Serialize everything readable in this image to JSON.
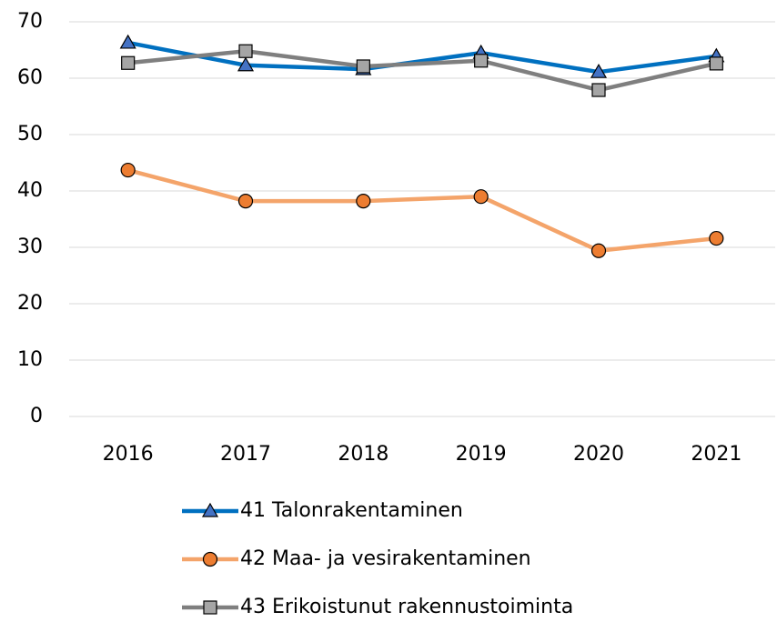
{
  "chart_data": {
    "type": "line",
    "categories": [
      "2016",
      "2017",
      "2018",
      "2019",
      "2020",
      "2021"
    ],
    "series": [
      {
        "name": "41 Talonrakentaminen",
        "color": "#0070c0",
        "marker": "triangle",
        "marker_color": "#4472c4",
        "values": [
          66.3,
          62.3,
          61.6,
          64.5,
          61.1,
          63.9
        ]
      },
      {
        "name": "42 Maa- ja vesirakentaminen",
        "color": "#f4a46a",
        "marker": "circle",
        "marker_color": "#ed7d31",
        "values": [
          43.7,
          38.2,
          38.2,
          39.0,
          29.4,
          31.6
        ]
      },
      {
        "name": "43 Erikoistunut rakennustoiminta",
        "color": "#7f7f7f",
        "marker": "square",
        "marker_color": "#a5a5a5",
        "values": [
          62.7,
          64.8,
          62.1,
          63.1,
          57.9,
          62.6
        ]
      }
    ],
    "ylim": [
      0,
      70
    ],
    "yticks": [
      0,
      10,
      20,
      30,
      40,
      50,
      60,
      70
    ],
    "grid": true,
    "legend": "bottom"
  }
}
